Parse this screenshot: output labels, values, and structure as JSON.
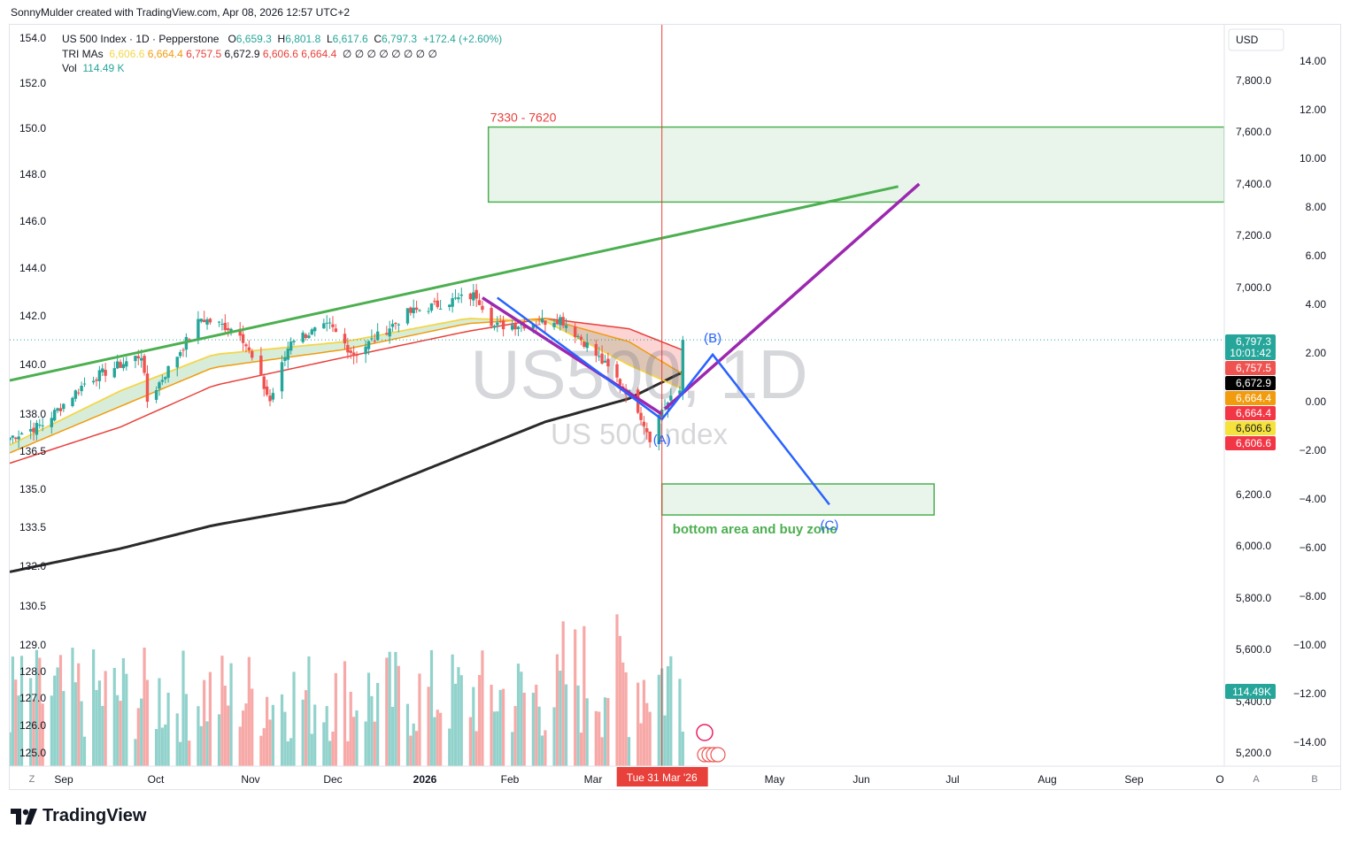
{
  "header": {
    "attribution": "SonnyMulder created with TradingView.com, Apr 08, 2026 12:57 UTC+2"
  },
  "legend": {
    "symbol": "US 500 Index · 1D · Pepperstone",
    "o_label": "O",
    "o": "6,659.3",
    "h_label": "H",
    "h": "6,801.8",
    "l_label": "L",
    "l": "6,617.6",
    "c_label": "C",
    "c": "6,797.3",
    "change": "+172.4 (+2.60%)",
    "tri_label": "TRI MAs",
    "tri_values": [
      "6,606.6",
      "6,664.4",
      "6,757.5",
      "6,672.9",
      "6,606.6",
      "6,664.4"
    ],
    "tri_colors": [
      "#f5d547",
      "#f29b0d",
      "#e8403a",
      "#131722",
      "#e8403a",
      "#e8403a"
    ],
    "empty_marks": "∅ ∅ ∅ ∅ ∅ ∅ ∅ ∅",
    "vol_label": "Vol",
    "vol": "114.49 K"
  },
  "watermark": {
    "big": "US500, 1D",
    "small": "US 500 Index"
  },
  "currency": "USD",
  "left_axis": [
    "154.0",
    "152.0",
    "150.0",
    "148.0",
    "146.0",
    "144.0",
    "142.0",
    "140.0",
    "138.0",
    "136.5",
    "135.0",
    "133.5",
    "132.0",
    "130.5",
    "129.0",
    "128.0",
    "127.0",
    "126.0",
    "125.0"
  ],
  "right_price_axis": [
    "7,800.0",
    "7,600.0",
    "7,400.0",
    "7,200.0",
    "7,000.0",
    "6,200.0",
    "6,000.0",
    "5,800.0",
    "5,600.0",
    "5,400.0",
    "5,200.0"
  ],
  "right_pct_axis": [
    "14.00",
    "12.00",
    "10.00",
    "8.00",
    "6.00",
    "4.00",
    "2.00",
    "0.00",
    "−2.00",
    "−4.00",
    "−6.00",
    "−8.00",
    "−10.00",
    "−12.00",
    "−14.00"
  ],
  "time_axis": [
    "Sep",
    "Oct",
    "Nov",
    "Dec",
    "2026",
    "Feb",
    "Mar",
    "May",
    "Jun",
    "Jul",
    "Aug",
    "Sep",
    "O"
  ],
  "crosshair_date": "Tue 31 Mar '26",
  "axis_buttons": {
    "z": "Z",
    "a": "A",
    "b": "B"
  },
  "price_tags": [
    {
      "text": "6,797.3",
      "sub": "10:01:42",
      "bg": "#26a69a",
      "fg": "#ffffff"
    },
    {
      "text": "6,757.5",
      "bg": "#ef5350",
      "fg": "#ffffff"
    },
    {
      "text": "6,672.9",
      "bg": "#000000",
      "fg": "#ffffff"
    },
    {
      "text": "6,664.4",
      "bg": "#f29b0d",
      "fg": "#ffffff"
    },
    {
      "text": "6,664.4",
      "bg": "#f23645",
      "fg": "#ffffff"
    },
    {
      "text": "6,606.6",
      "bg": "#f5e33b",
      "fg": "#131722"
    },
    {
      "text": "6,606.6",
      "bg": "#f23645",
      "fg": "#ffffff"
    }
  ],
  "vol_tag": {
    "text": "114.49K",
    "bg": "#26a69a"
  },
  "annotations": {
    "target_zone": "7330 - 7620",
    "buy_zone": "bottom area and buy zone",
    "wave_a": "(A)",
    "wave_b": "(B)",
    "wave_c": "(C)"
  },
  "brand": "TradingView",
  "colors": {
    "up": "#26a69a",
    "down": "#ef5350",
    "green_line": "#4caf50",
    "purple": "#9c27b0",
    "blue": "#2962ff",
    "ma200": "#2a2a2a"
  },
  "chart_data": {
    "type": "candlestick",
    "title": "US 500 Index · 1D · Pepperstone",
    "ylim": [
      5150,
      7950
    ],
    "x_range": [
      "2025-08-25",
      "2026-10-05"
    ],
    "yticks": [
      5200,
      5400,
      5600,
      5800,
      6000,
      6200,
      7000,
      7200,
      7400,
      7600,
      7800
    ],
    "anchors": [
      [
        "2025-08-25",
        6420
      ],
      [
        "2025-09-05",
        6470
      ],
      [
        "2025-09-20",
        6640
      ],
      [
        "2025-10-08",
        6740
      ],
      [
        "2025-10-10",
        6560
      ],
      [
        "2025-10-28",
        6880
      ],
      [
        "2025-11-10",
        6830
      ],
      [
        "2025-11-20",
        6560
      ],
      [
        "2025-11-27",
        6800
      ],
      [
        "2025-12-10",
        6850
      ],
      [
        "2025-12-18",
        6740
      ],
      [
        "2026-01-05",
        6900
      ],
      [
        "2026-01-20",
        6950
      ],
      [
        "2026-01-28",
        6970
      ],
      [
        "2026-02-03",
        6850
      ],
      [
        "2026-02-15",
        6860
      ],
      [
        "2026-02-25",
        6880
      ],
      [
        "2026-03-05",
        6790
      ],
      [
        "2026-03-15",
        6660
      ],
      [
        "2026-03-22",
        6560
      ],
      [
        "2026-03-27",
        6420
      ],
      [
        "2026-03-31",
        6530
      ],
      [
        "2026-04-06",
        6600
      ],
      [
        "2026-04-07",
        6797.3
      ]
    ],
    "ma_fast_anchors": [
      [
        "2025-08-25",
        6390
      ],
      [
        "2025-10-01",
        6600
      ],
      [
        "2025-11-01",
        6740
      ],
      [
        "2025-12-15",
        6790
      ],
      [
        "2026-01-25",
        6880
      ],
      [
        "2026-02-20",
        6870
      ],
      [
        "2026-03-20",
        6700
      ],
      [
        "2026-04-07",
        6606.6
      ]
    ],
    "ma_mid_anchors": [
      [
        "2025-08-25",
        6360
      ],
      [
        "2025-10-01",
        6540
      ],
      [
        "2025-11-01",
        6690
      ],
      [
        "2025-12-15",
        6760
      ],
      [
        "2026-01-25",
        6860
      ],
      [
        "2026-02-20",
        6880
      ],
      [
        "2026-03-20",
        6790
      ],
      [
        "2026-04-07",
        6664.4
      ]
    ],
    "ma_slow_anchors": [
      [
        "2025-08-25",
        6320
      ],
      [
        "2025-10-01",
        6460
      ],
      [
        "2025-11-01",
        6620
      ],
      [
        "2025-12-15",
        6730
      ],
      [
        "2026-01-25",
        6830
      ],
      [
        "2026-02-20",
        6880
      ],
      [
        "2026-03-20",
        6840
      ],
      [
        "2026-04-07",
        6757.5
      ]
    ],
    "ma200_anchors": [
      [
        "2025-08-25",
        5900
      ],
      [
        "2025-10-01",
        5990
      ],
      [
        "2025-11-01",
        6080
      ],
      [
        "2025-12-15",
        6170
      ],
      [
        "2026-01-25",
        6360
      ],
      [
        "2026-02-20",
        6480
      ],
      [
        "2026-03-20",
        6570
      ],
      [
        "2026-04-07",
        6672.9
      ]
    ],
    "green_trendline": [
      [
        "2025-08-25",
        6640
      ],
      [
        "2026-06-18",
        7390
      ]
    ],
    "target_zone": {
      "from": "2026-02-01",
      "to": "2026-10-05",
      "low": 7330,
      "high": 7620
    },
    "buy_zone": {
      "from": "2026-03-31",
      "to": "2026-06-30",
      "low": 6120,
      "high": 6240
    },
    "purple_downline": [
      [
        "2026-01-30",
        6960
      ],
      [
        "2026-03-31",
        6510
      ]
    ],
    "purple_upline": [
      [
        "2026-04-01",
        6530
      ],
      [
        "2026-06-25",
        7400
      ]
    ],
    "blue_path": [
      [
        "2026-02-04",
        6960
      ],
      [
        "2026-03-31",
        6490
      ],
      [
        "2026-04-17",
        6740
      ],
      [
        "2026-05-26",
        6160
      ]
    ],
    "crosshair": {
      "date": "2026-03-31",
      "price": 6797.3
    },
    "current_price": 6797.3,
    "volume": {
      "last": "114.49K"
    }
  }
}
